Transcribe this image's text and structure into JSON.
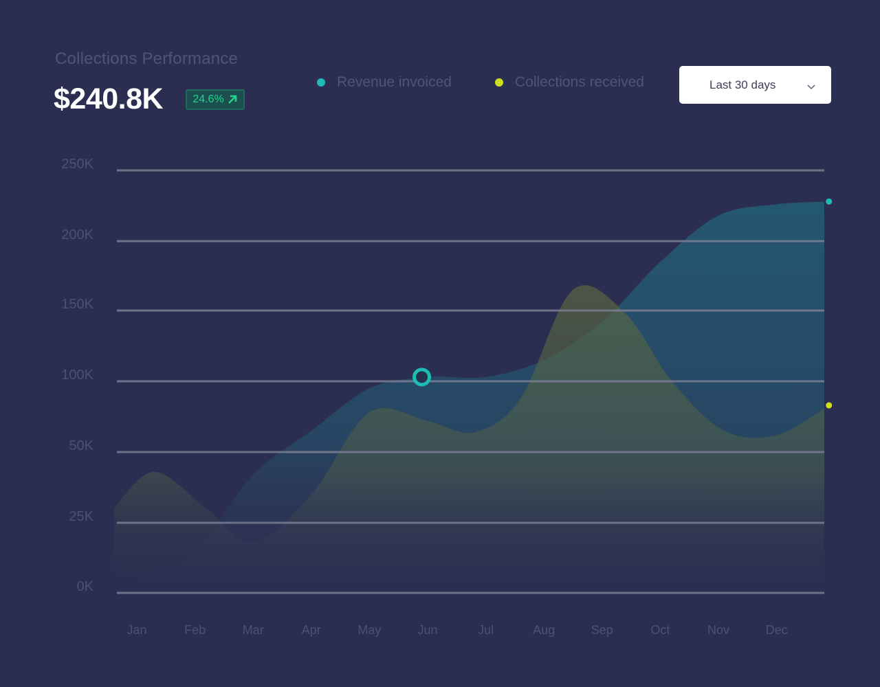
{
  "header": {
    "title": "Collections Performance",
    "kpi_value": "$240.8K",
    "change_badge": "24.6%",
    "change_icon": "arrow-up-right-icon"
  },
  "legend": [
    {
      "label": "Revenue invoiced",
      "color": "#1fbcb6"
    },
    {
      "label": "Collections received",
      "color": "#cfe01a"
    }
  ],
  "filter": {
    "selected": "Last 30 days",
    "icon": "chevron-down-icon"
  },
  "colors": {
    "background": "#2c2e51",
    "revenue": "#1fbcb6",
    "collections": "#cfe01a",
    "positive": "#22d38a"
  },
  "chart_data": {
    "type": "area",
    "categories": [
      "Jan",
      "Feb",
      "Mar",
      "Apr",
      "May",
      "Jun",
      "Jul",
      "Aug",
      "Sep",
      "Oct",
      "Nov",
      "Dec"
    ],
    "y_ticks": [
      {
        "label": "250K",
        "value": 250
      },
      {
        "label": "200K",
        "value": 200
      },
      {
        "label": "150K",
        "value": 150
      },
      {
        "label": "100K",
        "value": 100
      },
      {
        "label": "50K",
        "value": 50
      },
      {
        "label": "25K",
        "value": 25
      },
      {
        "label": "0K",
        "value": 0
      }
    ],
    "series": [
      {
        "name": "Revenue invoiced",
        "color": "#1fbcb6",
        "points": [
          [
            0,
            5
          ],
          [
            1,
            15
          ],
          [
            2,
            42
          ],
          [
            3,
            65
          ],
          [
            4,
            95
          ],
          [
            5,
            103
          ],
          [
            6,
            103
          ],
          [
            7,
            115
          ],
          [
            8,
            142
          ],
          [
            9,
            185
          ],
          [
            10,
            218
          ],
          [
            11,
            226
          ],
          [
            11.9,
            228
          ]
        ]
      },
      {
        "name": "Collections received",
        "color": "#cfe01a",
        "points": [
          [
            -0.4,
            30
          ],
          [
            0.3,
            43
          ],
          [
            1.2,
            30
          ],
          [
            2.0,
            18
          ],
          [
            3.0,
            35
          ],
          [
            4.0,
            78
          ],
          [
            5.0,
            72
          ],
          [
            5.8,
            64
          ],
          [
            6.6,
            88
          ],
          [
            7.5,
            165
          ],
          [
            8.4,
            148
          ],
          [
            9.2,
            100
          ],
          [
            10.1,
            65
          ],
          [
            11.0,
            62
          ],
          [
            11.9,
            83
          ]
        ]
      }
    ],
    "highlight": {
      "series": "Revenue invoiced",
      "x": 4.9,
      "y": 103
    },
    "grid": true
  }
}
